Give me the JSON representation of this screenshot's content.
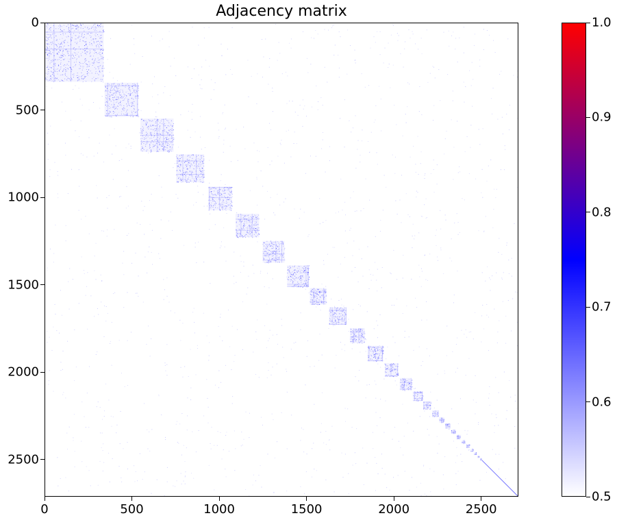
{
  "chart_data": {
    "type": "heatmap",
    "title": "Adjacency matrix",
    "xlabel": "",
    "ylabel": "",
    "xlim": [
      0,
      2713
    ],
    "ylim": [
      2713,
      0
    ],
    "x_ticks": [
      0,
      500,
      1000,
      1500,
      2000,
      2500
    ],
    "y_ticks": [
      0,
      500,
      1000,
      1500,
      2000,
      2500
    ],
    "x_tick_labels": [
      "0",
      "500",
      "1000",
      "1500",
      "2000",
      "2500"
    ],
    "y_tick_labels": [
      "0",
      "500",
      "1000",
      "1500",
      "2000",
      "2500"
    ],
    "colorbar": {
      "vmin": 0.5,
      "vmax": 1.0,
      "ticks": [
        0.5,
        0.6,
        0.7,
        0.8,
        0.9,
        1.0
      ],
      "tick_labels": [
        "0.5",
        "0.6",
        "0.7",
        "0.8",
        "0.9",
        "1.0"
      ],
      "colormap": [
        "#ffffff",
        "#0000ff",
        "#ff0000"
      ]
    },
    "grid": false,
    "description": "Block-diagonal sparse adjacency matrix; dense communities along the diagonal decreasing in size from ~335 nodes down to single-node diagonal at the end, with sparse off-diagonal noise.",
    "diagonal_blocks": [
      {
        "start": 0,
        "end": 335
      },
      {
        "start": 340,
        "end": 535
      },
      {
        "start": 545,
        "end": 735
      },
      {
        "start": 750,
        "end": 910
      },
      {
        "start": 935,
        "end": 1070
      },
      {
        "start": 1090,
        "end": 1225
      },
      {
        "start": 1245,
        "end": 1370
      },
      {
        "start": 1385,
        "end": 1510
      },
      {
        "start": 1515,
        "end": 1610
      },
      {
        "start": 1625,
        "end": 1725
      },
      {
        "start": 1745,
        "end": 1830
      },
      {
        "start": 1845,
        "end": 1935
      },
      {
        "start": 1945,
        "end": 2020
      },
      {
        "start": 2030,
        "end": 2100
      },
      {
        "start": 2105,
        "end": 2160
      },
      {
        "start": 2165,
        "end": 2210
      },
      {
        "start": 2215,
        "end": 2250
      },
      {
        "start": 2255,
        "end": 2285
      },
      {
        "start": 2290,
        "end": 2320
      },
      {
        "start": 2325,
        "end": 2350
      },
      {
        "start": 2355,
        "end": 2380
      },
      {
        "start": 2385,
        "end": 2405
      },
      {
        "start": 2410,
        "end": 2430
      },
      {
        "start": 2435,
        "end": 2450
      },
      {
        "start": 2455,
        "end": 2470
      },
      {
        "start": 2475,
        "end": 2485
      },
      {
        "start": 2490,
        "end": 2500
      }
    ],
    "diagonal_line": {
      "start": 2500,
      "end": 2713
    }
  }
}
